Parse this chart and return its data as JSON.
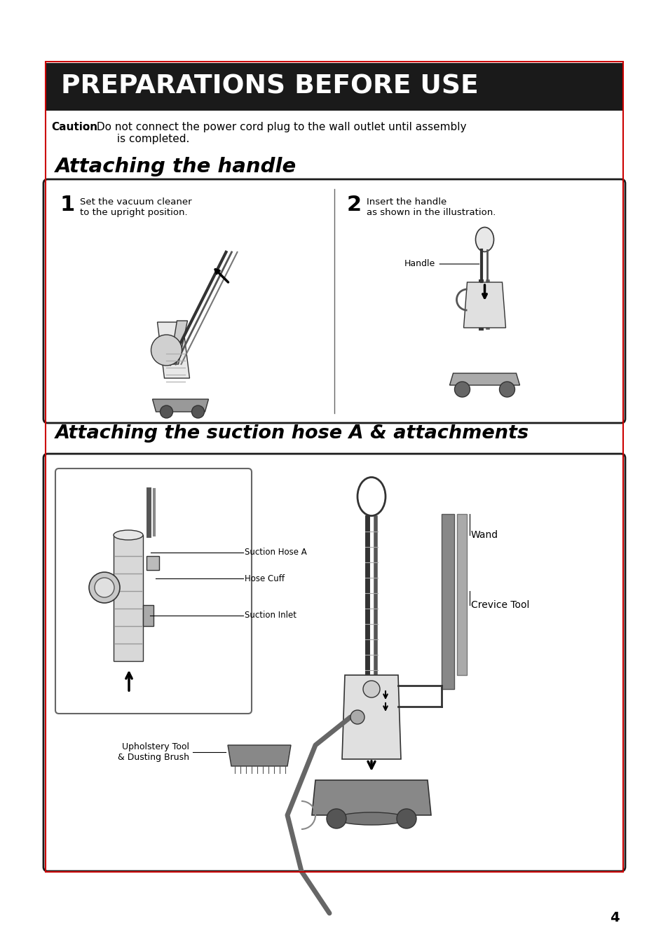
{
  "page_bg": "#ffffff",
  "title_bg": "#1a1a1a",
  "title_text": "PREPARATIONS BEFORE USE",
  "title_color": "#ffffff",
  "border_color_red": "#cc0000",
  "border_color_black": "#1a1a1a",
  "caution_bold": "Caution",
  "caution_text": ":  Do not connect the power cord plug to the wall outlet until assembly\n         is completed.",
  "section1_title": "Attaching the handle",
  "section2_title": "Attaching the suction hose A & attachments",
  "step1_num": "1",
  "step1_text": "Set the vacuum cleaner\nto the upright position.",
  "step2_num": "2",
  "step2_text": "Insert the handle\nas shown in the illustration.",
  "handle_label": "Handle",
  "wand_label": "Wand",
  "crevice_label": "Crevice Tool",
  "suction_hose_label": "Suction Hose A",
  "hose_cuff_label": "Hose Cuff",
  "suction_inlet_label": "Suction Inlet",
  "upholstery_label": "Upholstery Tool\n& Dusting Brush",
  "page_number": "4"
}
